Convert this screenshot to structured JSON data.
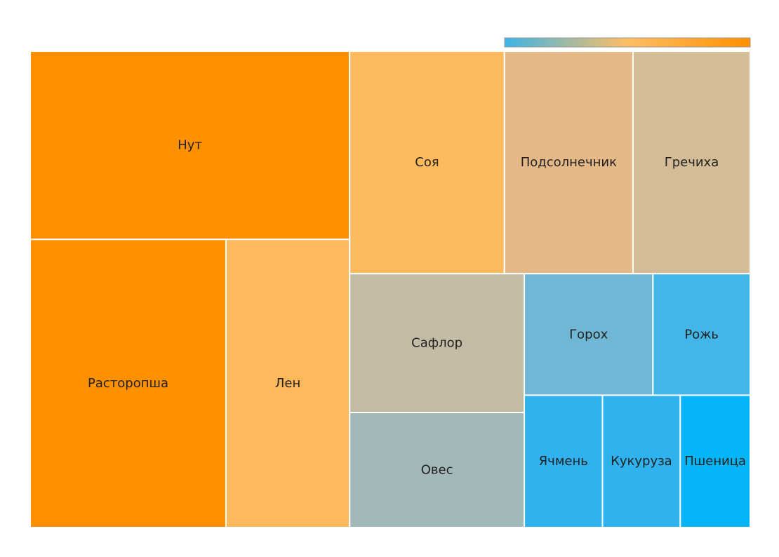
{
  "chart_data": {
    "type": "treemap",
    "title": "",
    "colorbar": {
      "stops": [
        "#3cb4e6",
        "#ffbe64",
        "#ff9000"
      ]
    },
    "items": [
      {
        "label": "Нут",
        "value": 121.5,
        "color": "#ff9100"
      },
      {
        "label": "Расторопша",
        "value": 114.0,
        "color": "#ff9100"
      },
      {
        "label": "Лен",
        "value": 72.0,
        "color": "#fdb95c"
      },
      {
        "label": "Соя",
        "value": 69.6,
        "color": "#fdbb5e"
      },
      {
        "label": "Подсолнечник",
        "value": 57.8,
        "color": "#e5b887"
      },
      {
        "label": "Гречиха",
        "value": 52.7,
        "color": "#d4bd96"
      },
      {
        "label": "Сафлор",
        "value": 49.0,
        "color": "#c3bba4"
      },
      {
        "label": "Горох",
        "value": 31.6,
        "color": "#6fb7d4"
      },
      {
        "label": "Рожь",
        "value": 23.9,
        "color": "#42b5e9"
      },
      {
        "label": "Овес",
        "value": 40.6,
        "color": "#a3b8b8"
      },
      {
        "label": "Ячмень",
        "value": 20.9,
        "color": "#2fb2ee"
      },
      {
        "label": "Кукуруза",
        "value": 20.8,
        "color": "#2fb2ee"
      },
      {
        "label": "Пшеница",
        "value": 18.7,
        "color": "#03b4f6"
      }
    ]
  }
}
